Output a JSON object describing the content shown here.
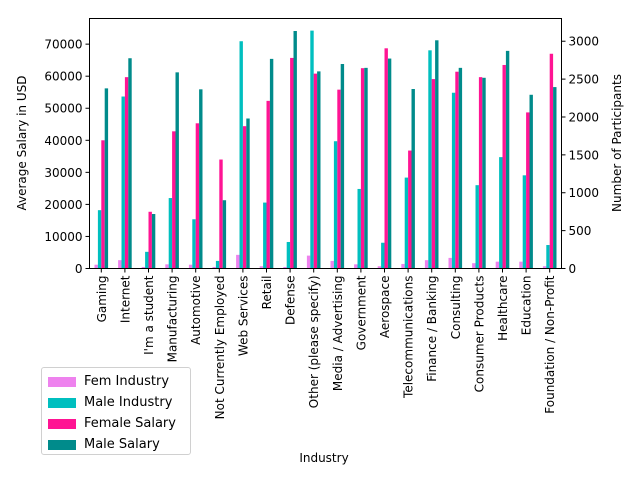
{
  "chart_data": {
    "type": "bar",
    "xlabel": "Industry",
    "ylabel_left": "Average Salary in USD",
    "ylabel_right": "Number of Participants",
    "ylim_left": [
      0,
      78000
    ],
    "ylim_right": [
      0,
      3300
    ],
    "yticks_left": [
      0,
      10000,
      20000,
      30000,
      40000,
      50000,
      60000,
      70000
    ],
    "yticks_right": [
      0,
      500,
      1000,
      1500,
      2000,
      2500,
      3000
    ],
    "categories": [
      "Gaming",
      "Internet",
      "I'm a student",
      "Manufacturing",
      "Automotive",
      "Not Currently Employed",
      "Web Services",
      "Retail",
      "Defense",
      "Other (please specify)",
      "Media / Advertising",
      "Government",
      "Aerospace",
      "Telecommunications",
      "Finance / Banking",
      "Consulting",
      "Consumer Products",
      "Healthcare",
      "Education",
      "Foundation / Non-Profit"
    ],
    "series": [
      {
        "name": "Fem Industry",
        "axis": "right",
        "color": "#ee82ee",
        "values": [
          50,
          110,
          20,
          55,
          50,
          20,
          180,
          30,
          20,
          170,
          100,
          55,
          30,
          60,
          110,
          140,
          70,
          90,
          90,
          30
        ]
      },
      {
        "name": "Male Industry",
        "axis": "right",
        "color": "#00bfbf",
        "values": [
          770,
          2270,
          220,
          930,
          650,
          100,
          3000,
          870,
          350,
          3140,
          1680,
          1050,
          340,
          1200,
          2880,
          2320,
          1100,
          1470,
          1230,
          310
        ]
      },
      {
        "name": "Female Salary",
        "axis": "left",
        "color": "#ff1493",
        "values": [
          40000,
          59700,
          17700,
          42800,
          45300,
          34000,
          44400,
          52300,
          65700,
          60800,
          55800,
          62500,
          68700,
          36800,
          59100,
          61400,
          59700,
          63500,
          48700,
          67000
        ]
      },
      {
        "name": "Male Salary",
        "axis": "left",
        "color": "#008b8b",
        "values": [
          56200,
          65600,
          17000,
          61200,
          55900,
          21300,
          46800,
          65400,
          74100,
          61500,
          63800,
          62600,
          65500,
          56000,
          71200,
          62600,
          59500,
          67900,
          54200,
          56600
        ]
      }
    ]
  }
}
